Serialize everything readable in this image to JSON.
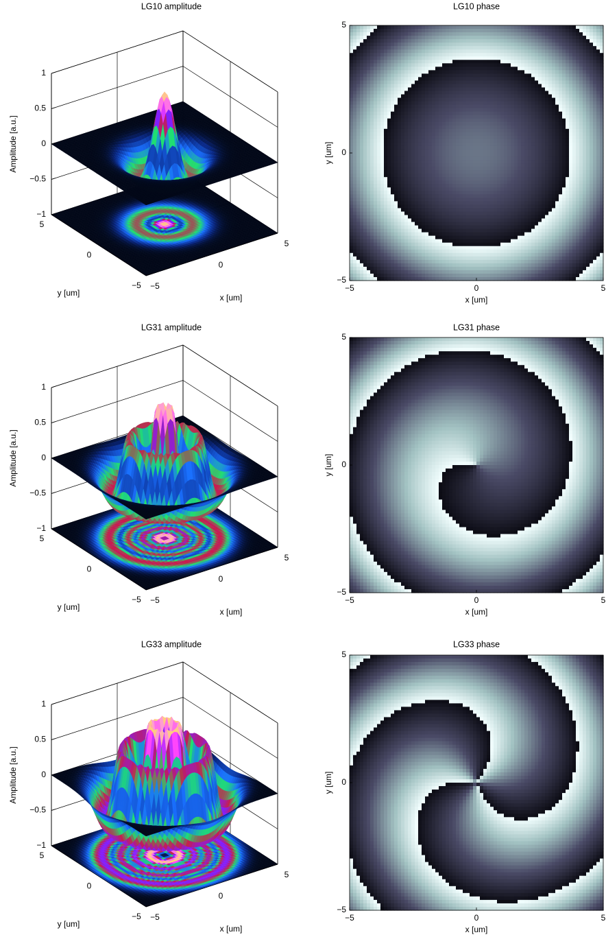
{
  "chart_data": [
    {
      "type": "surface3d",
      "title": "LG10 amplitude",
      "xlabel": "x [um]",
      "ylabel": "y [um]",
      "zlabel": "Amplitude [a.u.]",
      "xlim": [
        -5,
        5
      ],
      "ylim": [
        -5,
        5
      ],
      "zlim": [
        -1,
        1
      ],
      "xticks": [
        {
          "value": -5,
          "label": "−5"
        },
        0,
        5
      ],
      "yticks": [
        {
          "value": -5,
          "label": "−5"
        },
        0,
        5
      ],
      "zticks": [
        {
          "value": -1,
          "label": "−1"
        },
        {
          "value": -0.5,
          "label": "−0.5"
        },
        0,
        0.5,
        1
      ],
      "grid": true
    },
    {
      "type": "phase",
      "title": "LG10 phase",
      "xlabel": "x [um]",
      "ylabel": "y [um]",
      "xlim": [
        -5,
        5
      ],
      "ylim": [
        -5,
        5
      ],
      "xticks": [
        {
          "value": -5,
          "label": "−5"
        },
        0,
        5
      ],
      "yticks": [
        {
          "value": -5,
          "label": "−5"
        },
        0,
        5
      ]
    },
    {
      "type": "surface3d",
      "title": "LG31 amplitude",
      "xlabel": "x [um]",
      "ylabel": "y [um]",
      "zlabel": "Amplitude [a.u.]",
      "xlim": [
        -5,
        5
      ],
      "ylim": [
        -5,
        5
      ],
      "zlim": [
        -1,
        1
      ],
      "xticks": [
        {
          "value": -5,
          "label": "−5"
        },
        0,
        5
      ],
      "yticks": [
        {
          "value": -5,
          "label": "−5"
        },
        0,
        5
      ],
      "zticks": [
        {
          "value": -1,
          "label": "−1"
        },
        {
          "value": -0.5,
          "label": "−0.5"
        },
        0,
        0.5,
        1
      ],
      "grid": true
    },
    {
      "type": "phase",
      "title": "LG31 phase",
      "xlabel": "x [um]",
      "ylabel": "y [um]",
      "xlim": [
        -5,
        5
      ],
      "ylim": [
        -5,
        5
      ],
      "xticks": [
        {
          "value": -5,
          "label": "−5"
        },
        0,
        5
      ],
      "yticks": [
        {
          "value": -5,
          "label": "−5"
        },
        0,
        5
      ]
    },
    {
      "type": "surface3d",
      "title": "LG33 amplitude",
      "xlabel": "x [um]",
      "ylabel": "y [um]",
      "zlabel": "Amplitude [a.u.]",
      "xlim": [
        -5,
        5
      ],
      "ylim": [
        -5,
        5
      ],
      "zlim": [
        -1,
        1
      ],
      "xticks": [
        {
          "value": -5,
          "label": "−5"
        },
        0,
        5
      ],
      "yticks": [
        {
          "value": -5,
          "label": "−5"
        },
        0,
        5
      ],
      "zticks": [
        {
          "value": -1,
          "label": "−1"
        },
        {
          "value": -0.5,
          "label": "−0.5"
        },
        0,
        0.5,
        1
      ],
      "grid": true
    },
    {
      "type": "phase",
      "title": "LG33 phase",
      "xlabel": "x [um]",
      "ylabel": "y [um]",
      "xlim": [
        -5,
        5
      ],
      "ylim": [
        -5,
        5
      ],
      "xticks": [
        {
          "value": -5,
          "label": "−5"
        },
        0,
        5
      ],
      "yticks": [
        {
          "value": -5,
          "label": "−5"
        },
        0,
        5
      ]
    }
  ]
}
